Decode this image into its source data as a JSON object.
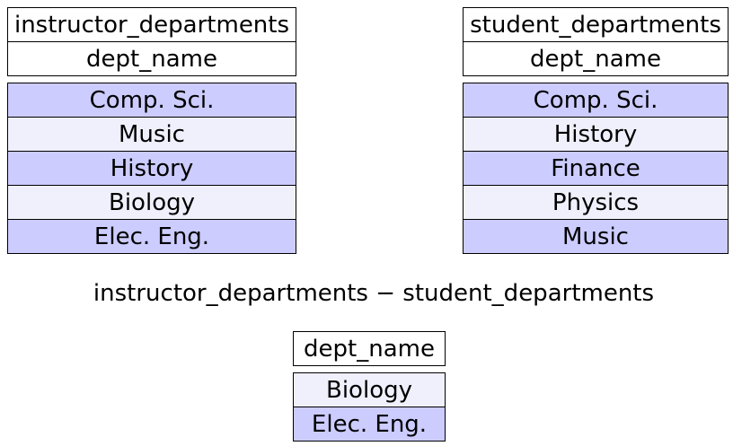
{
  "instructor_table": {
    "title": "instructor_departments",
    "column": "dept_name",
    "rows": [
      "Comp. Sci.",
      "Music",
      "History",
      "Biology",
      "Elec. Eng."
    ]
  },
  "student_table": {
    "title": "student_departments",
    "column": "dept_name",
    "rows": [
      "Comp. Sci.",
      "History",
      "Finance",
      "Physics",
      "Music"
    ]
  },
  "operation": "instructor_departments − student_departments",
  "result_table": {
    "column": "dept_name",
    "rows": [
      "Biology",
      "Elec. Eng."
    ]
  },
  "colors": {
    "row_dark": "#ccccff",
    "row_light": "#f0f0fd",
    "border": "#000000"
  }
}
